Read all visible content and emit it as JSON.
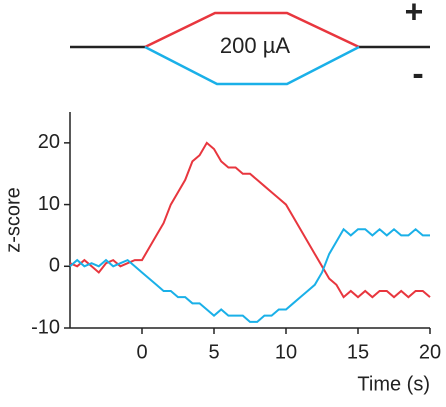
{
  "chart_data": {
    "type": "line",
    "annotations": [
      "200 µA",
      "+",
      "-"
    ],
    "xlabel": "Time (s)",
    "ylabel": "z-score",
    "xlim": [
      -5,
      20
    ],
    "xticks": [
      0,
      5,
      10,
      15,
      20
    ],
    "ylim": [
      -10,
      25
    ],
    "yticks": [
      -10,
      0,
      10,
      20
    ],
    "x": [
      -5,
      -4.5,
      -4,
      -3.5,
      -3,
      -2.5,
      -2,
      -1.5,
      -1,
      -0.5,
      0,
      0.5,
      1,
      1.5,
      2,
      2.5,
      3,
      3.5,
      4,
      4.5,
      5,
      5.5,
      6,
      6.5,
      7,
      7.5,
      8,
      8.5,
      9,
      9.5,
      10,
      10.5,
      11,
      11.5,
      12,
      12.5,
      13,
      13.5,
      14,
      14.5,
      15,
      15.5,
      16,
      16.5,
      17,
      17.5,
      18,
      18.5,
      19,
      19.5,
      20
    ],
    "series": [
      {
        "color": "#e8363e",
        "values": [
          0.5,
          0,
          1,
          0,
          -1,
          0.5,
          1,
          0,
          0.5,
          1,
          1,
          3,
          5,
          7,
          10,
          12,
          14,
          17,
          18,
          20,
          19,
          17,
          16,
          16,
          15,
          15,
          14,
          13,
          12,
          11,
          10,
          8,
          6,
          4,
          2,
          0,
          -2,
          -3,
          -5,
          -4,
          -5,
          -4,
          -5,
          -4,
          -4,
          -5,
          -4,
          -5,
          -4,
          -4,
          -5
        ]
      },
      {
        "color": "#1ab0e8",
        "values": [
          0,
          1,
          0,
          0.5,
          0,
          1,
          0,
          0.5,
          1,
          0,
          -1,
          -2,
          -3,
          -4,
          -4,
          -5,
          -5,
          -6,
          -6,
          -7,
          -8,
          -7,
          -8,
          -8,
          -8,
          -9,
          -9,
          -8,
          -8,
          -7,
          -7,
          -6,
          -5,
          -4,
          -3,
          -1,
          2,
          4,
          6,
          5,
          6,
          6,
          5,
          6,
          5,
          6,
          5,
          5,
          6,
          5,
          5
        ]
      }
    ]
  }
}
